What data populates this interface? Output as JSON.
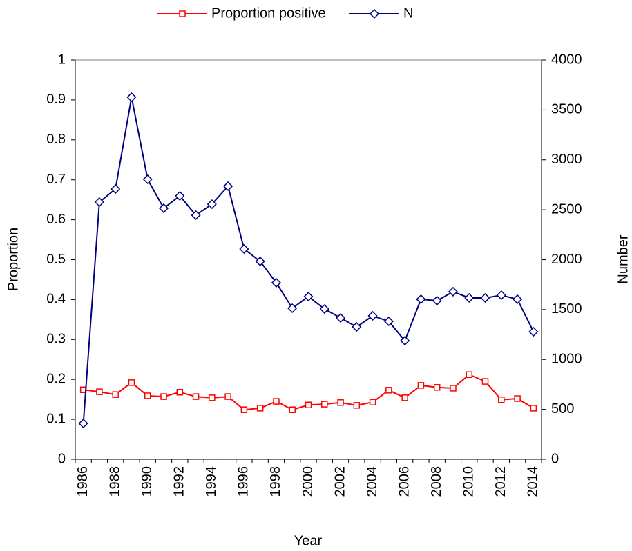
{
  "chart_data": {
    "type": "line",
    "x_label": "Year",
    "y_label": "Proportion",
    "y2_label": "Number",
    "categories": [
      "1986",
      null,
      "1988",
      null,
      "1990",
      null,
      "1992",
      null,
      "1994",
      null,
      "1996",
      null,
      "1998",
      null,
      "2000",
      null,
      "2002",
      null,
      "2004",
      null,
      "2006",
      null,
      "2008",
      null,
      "2010",
      null,
      "2012",
      null,
      "2014"
    ],
    "series": [
      {
        "name": "Proportion positive",
        "color": "#ff0000",
        "marker": "square",
        "values": [
          0.174,
          0.169,
          0.162,
          0.192,
          0.159,
          0.157,
          0.168,
          0.157,
          0.154,
          0.157,
          0.124,
          0.128,
          0.145,
          0.124,
          0.136,
          0.138,
          0.142,
          0.135,
          0.143,
          0.173,
          0.154,
          0.185,
          0.18,
          0.178,
          0.212,
          0.195,
          0.149,
          0.152,
          0.128
        ]
      },
      {
        "name": "N",
        "color": "#000080",
        "marker": "diamond",
        "axis": "y2",
        "values": [
          359,
          2577,
          2708,
          3627,
          2805,
          2515,
          2639,
          2446,
          2556,
          2736,
          2107,
          1983,
          1769,
          1513,
          1630,
          1506,
          1416,
          1326,
          1437,
          1382,
          1188,
          1603,
          1589,
          1679,
          1617,
          1617,
          1644,
          1603,
          1278
        ]
      }
    ],
    "ylim": [
      0,
      1
    ],
    "yticks": [
      0,
      0.1,
      0.2,
      0.3,
      0.4,
      0.5,
      0.6,
      0.7,
      0.8,
      0.9,
      1
    ],
    "y2lim": [
      0,
      4000
    ],
    "y2ticks": [
      0,
      500,
      1000,
      1500,
      2000,
      2500,
      3000,
      3500,
      4000
    ],
    "legend": "top"
  }
}
